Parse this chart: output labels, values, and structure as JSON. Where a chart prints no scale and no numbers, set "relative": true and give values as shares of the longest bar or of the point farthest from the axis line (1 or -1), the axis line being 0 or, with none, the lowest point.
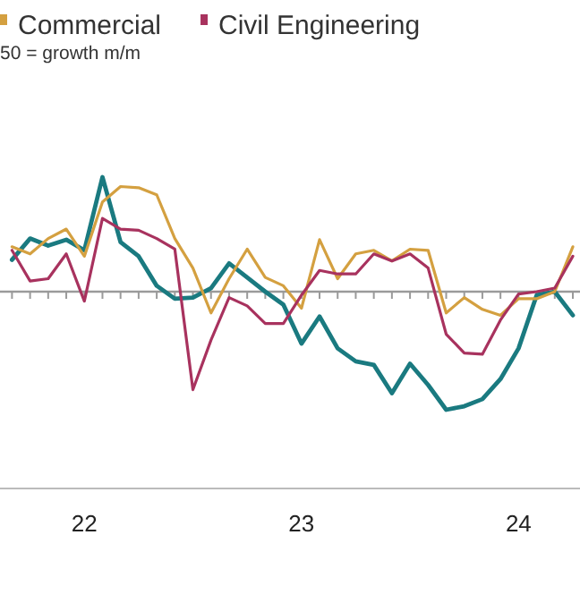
{
  "chart_data": {
    "type": "line",
    "relative": true,
    "subtitle": "50 = growth m/m",
    "legend": "top",
    "categories": [
      null,
      null,
      null,
      null,
      "22",
      null,
      null,
      null,
      null,
      null,
      null,
      null,
      null,
      null,
      null,
      null,
      "23",
      null,
      null,
      null,
      null,
      null,
      null,
      null,
      null,
      null,
      null,
      null,
      "24",
      null,
      null,
      null
    ],
    "series": [
      {
        "color": "#1a7a80",
        "values": [
          0.27,
          0.45,
          0.39,
          0.44,
          0.35,
          0.97,
          0.42,
          0.3,
          0.05,
          -0.06,
          -0.05,
          0.03,
          0.24,
          0.12,
          0,
          -0.11,
          -0.44,
          -0.21,
          -0.48,
          -0.59,
          -0.62,
          -0.86,
          -0.61,
          -0.79,
          -1,
          -0.97,
          -0.91,
          -0.74,
          -0.48,
          -0.03,
          0,
          -0.2
        ]
      },
      {
        "name": "Commercial",
        "color": "#d4a040",
        "values": [
          0.38,
          0.32,
          0.45,
          0.53,
          0.3,
          0.76,
          0.89,
          0.88,
          0.82,
          0.45,
          0.2,
          -0.18,
          0.11,
          0.36,
          0.12,
          0.05,
          -0.14,
          0.44,
          0.11,
          0.32,
          0.35,
          0.26,
          0.36,
          0.35,
          -0.18,
          -0.05,
          -0.15,
          -0.2,
          -0.06,
          -0.06,
          0,
          0.38
        ]
      },
      {
        "name": "Civil Engineering",
        "color": "#a8325e",
        "values": [
          0.35,
          0.09,
          0.11,
          0.32,
          -0.08,
          0.62,
          0.53,
          0.52,
          0.45,
          0.36,
          -0.83,
          -0.41,
          -0.05,
          -0.12,
          -0.27,
          -0.27,
          -0.03,
          0.18,
          0.15,
          0.15,
          0.32,
          0.26,
          0.32,
          0.2,
          -0.36,
          -0.52,
          -0.53,
          -0.24,
          -0.02,
          0,
          0.03,
          0.3
        ]
      }
    ]
  }
}
